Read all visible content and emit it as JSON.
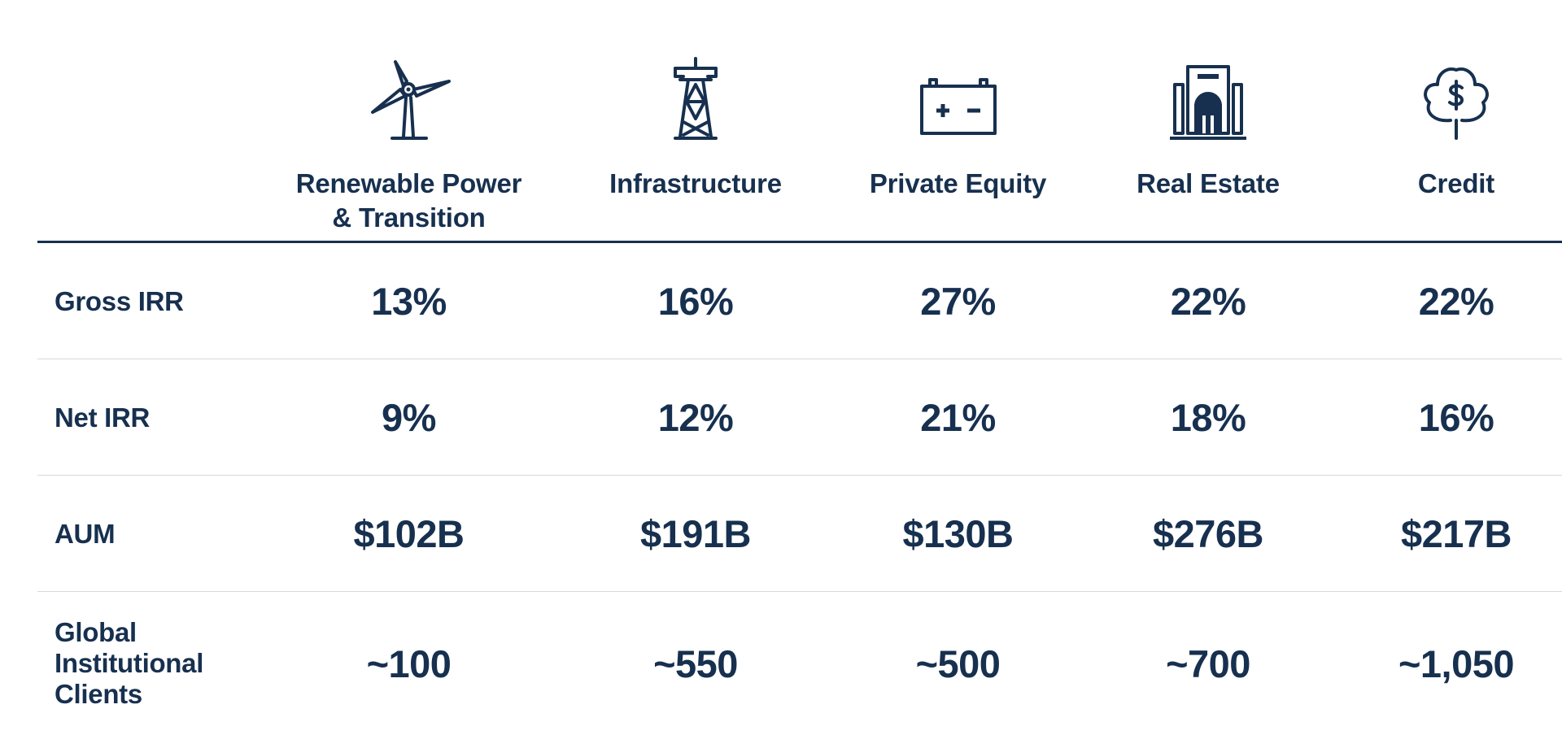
{
  "accent_color": "#17304f",
  "divider_color": "#d6d9dc",
  "columns": [
    {
      "label": "Renewable Power\n& Transition",
      "icon": "wind-turbine-icon"
    },
    {
      "label": "Infrastructure",
      "icon": "transmission-tower-icon"
    },
    {
      "label": "Private Equity",
      "icon": "battery-icon"
    },
    {
      "label": "Real Estate",
      "icon": "building-icon"
    },
    {
      "label": "Credit",
      "icon": "money-tree-icon"
    }
  ],
  "rows": [
    {
      "label": "Gross IRR",
      "values": [
        "13%",
        "16%",
        "27%",
        "22%",
        "22%"
      ]
    },
    {
      "label": "Net IRR",
      "values": [
        "9%",
        "12%",
        "21%",
        "18%",
        "16%"
      ]
    },
    {
      "label": "AUM",
      "values": [
        "$102B",
        "$191B",
        "$130B",
        "$276B",
        "$217B"
      ]
    },
    {
      "label": "Global\nInstitutional\nClients",
      "values": [
        "~100",
        "~550",
        "~500",
        "~700",
        "~1,050"
      ]
    }
  ]
}
